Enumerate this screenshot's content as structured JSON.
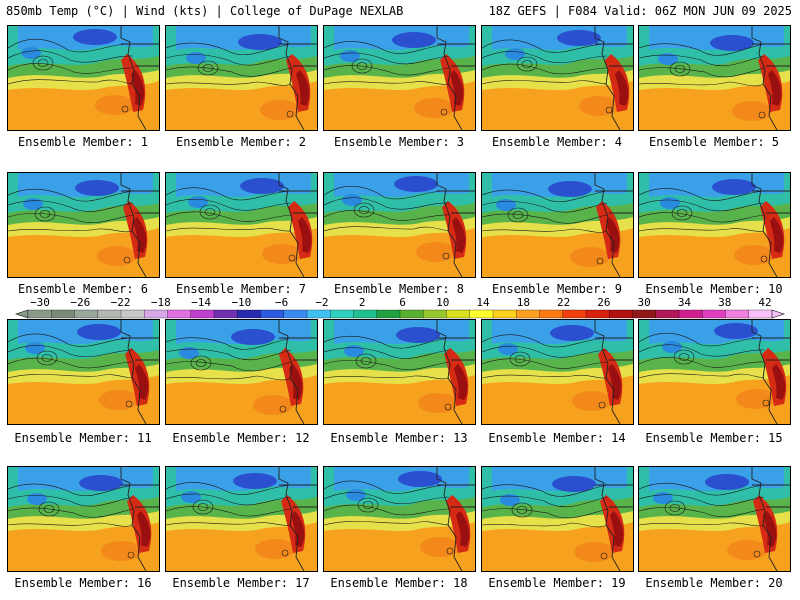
{
  "header": {
    "title": "850mb Temp (°C) | Wind (kts) | College of DuPage NEXLAB",
    "run_info": "18Z GEFS | F084 Valid: 06Z MON JUN 09 2025"
  },
  "member_label": "Ensemble Member:",
  "members": [
    "1",
    "2",
    "3",
    "4",
    "5",
    "6",
    "7",
    "8",
    "9",
    "10",
    "11",
    "12",
    "13",
    "14",
    "15",
    "16",
    "17",
    "18",
    "19",
    "20"
  ],
  "color_scale": {
    "labels": [
      "−30",
      "−26",
      "−22",
      "−18",
      "−14",
      "−10",
      "−6",
      "−2",
      "2",
      "6",
      "10",
      "14",
      "18",
      "22",
      "26",
      "30",
      "34",
      "38",
      "42"
    ],
    "colors": [
      "#8a9a8a",
      "#7a8a7a",
      "#9aa69a",
      "#b0b8b0",
      "#c8c8c8",
      "#d7a7e8",
      "#e070e0",
      "#c040d0",
      "#7030b0",
      "#2a2ab0",
      "#2a5ae0",
      "#3a8af0",
      "#40c0f0",
      "#30d0c0",
      "#20c090",
      "#20a040",
      "#58b030",
      "#98c830",
      "#d8e020",
      "#ffff30",
      "#ffd020",
      "#ffa020",
      "#ff7a10",
      "#f04010",
      "#d82010",
      "#b01010",
      "#901818",
      "#b01858",
      "#d02090",
      "#e040c0",
      "#f080e0",
      "#f8c0f8"
    ]
  }
}
